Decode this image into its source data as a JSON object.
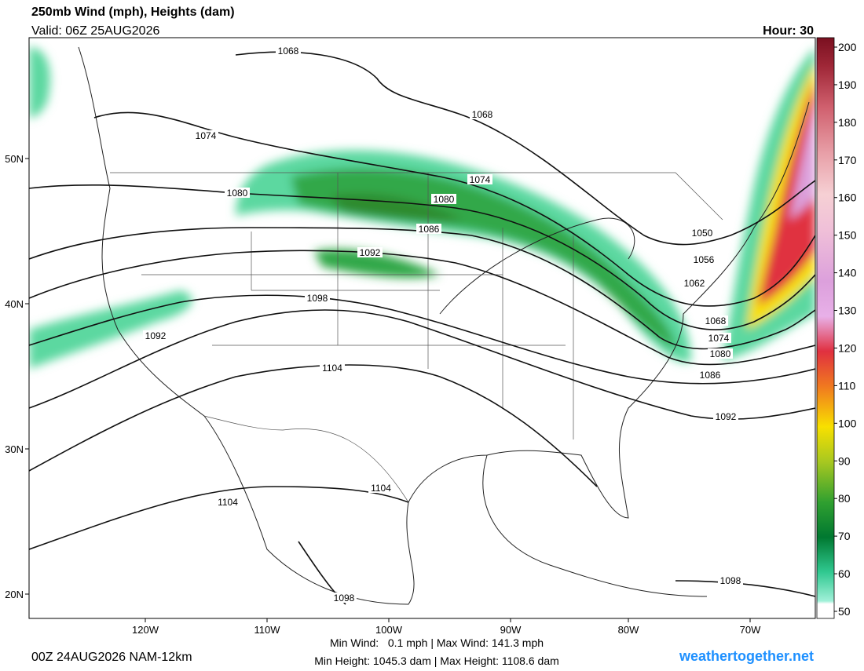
{
  "header": {
    "title": "250mb Wind (mph), Heights (dam)",
    "valid": "Valid: 06Z 25AUG2026",
    "hour": "Hour: 30"
  },
  "map": {
    "lon_labels": [
      "120W",
      "110W",
      "100W",
      "90W",
      "80W",
      "70W"
    ],
    "lat_labels": [
      "50N",
      "40N",
      "30N",
      "20N"
    ],
    "contour_labels": [
      "1068",
      "1068",
      "1074",
      "1074",
      "1080",
      "1080",
      "1086",
      "1092",
      "1098",
      "1092",
      "1104",
      "1104",
      "1104",
      "1098",
      "1050",
      "1056",
      "1062",
      "1068",
      "1074",
      "1080",
      "1086",
      "1092",
      "1098"
    ]
  },
  "colorbar": {
    "ticks": [
      200,
      190,
      180,
      170,
      160,
      150,
      140,
      130,
      120,
      110,
      100,
      90,
      80,
      70,
      60,
      50
    ]
  },
  "footer": {
    "run": "00Z 24AUG2026 NAM-12km",
    "stats": [
      "Min Wind:   0.1 mph | Max Wind: 141.3 mph",
      "Min Height: 1045.3 dam | Max Height: 1108.6 dam"
    ],
    "site": "weathertogether.net"
  }
}
